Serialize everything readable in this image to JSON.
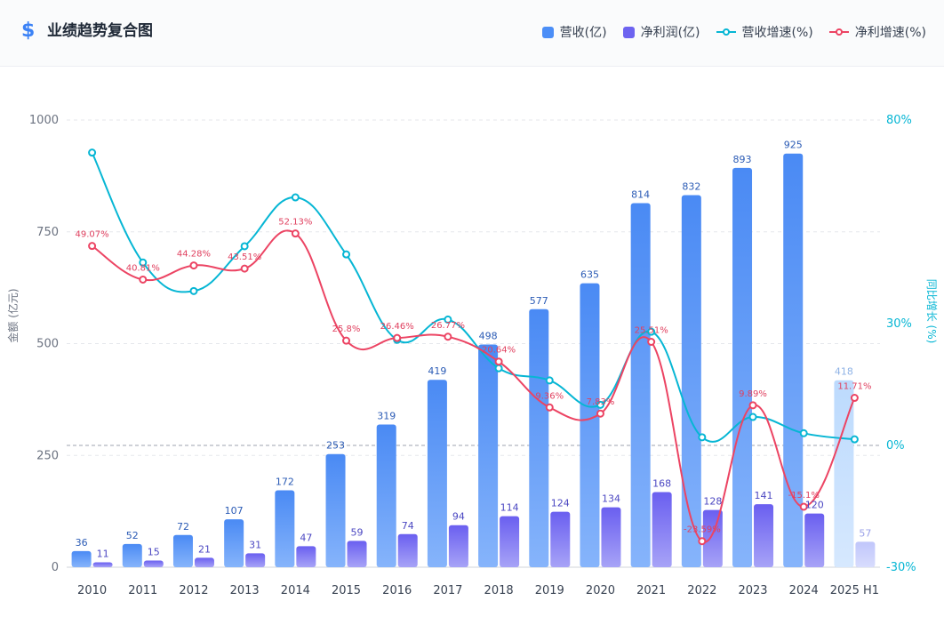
{
  "header": {
    "icon": "dollar-icon",
    "icon_glyph": "$",
    "title": "业绩趋势复合图"
  },
  "legend": [
    {
      "label": "营收(亿)",
      "color": "#4b8ef7",
      "kind": "box"
    },
    {
      "label": "净利润(亿)",
      "color": "#6d63f0",
      "kind": "box"
    },
    {
      "label": "营收增速(%)",
      "color": "#06b6d4",
      "kind": "line"
    },
    {
      "label": "净利增速(%)",
      "color": "#ec4463",
      "kind": "line"
    }
  ],
  "chart_data": {
    "type": "bar",
    "categories": [
      "2010",
      "2011",
      "2012",
      "2013",
      "2014",
      "2015",
      "2016",
      "2017",
      "2018",
      "2019",
      "2020",
      "2021",
      "2022",
      "2023",
      "2024",
      "2025 H1"
    ],
    "ylabel": "金额 (亿元)",
    "ylabel_right": "同比增长 (%)",
    "ylim": [
      0,
      1000
    ],
    "y_ticks": [
      0,
      250,
      500,
      750,
      1000
    ],
    "ylim_right": [
      -30,
      80
    ],
    "y_ticks_right": [
      "-30%",
      "0%",
      "30%",
      "80%"
    ],
    "y_ticks_right_values": [
      -30,
      0,
      30,
      80
    ],
    "grid": true,
    "legend_position": "top-right",
    "highlighted_category": "2025 H1",
    "series": [
      {
        "name": "营收(亿)",
        "type": "bar",
        "color": "#4b8ef7",
        "values": [
          36,
          52,
          72,
          107,
          172,
          253,
          319,
          419,
          498,
          577,
          635,
          814,
          832,
          893,
          925,
          418
        ]
      },
      {
        "name": "净利润(亿)",
        "type": "bar",
        "color": "#6d63f0",
        "values": [
          11,
          15,
          21,
          31,
          47,
          59,
          74,
          94,
          114,
          124,
          134,
          168,
          128,
          141,
          120,
          57
        ]
      },
      {
        "name": "营收增速(%)",
        "type": "line",
        "axis": "right",
        "color": "#06b6d4",
        "values": [
          72,
          45,
          38,
          49,
          61,
          47,
          26,
          31,
          19,
          16,
          10,
          28,
          2,
          7,
          3,
          1.5
        ]
      },
      {
        "name": "净利增速(%)",
        "type": "line",
        "axis": "right",
        "color": "#ec4463",
        "values": [
          49.07,
          40.81,
          44.28,
          43.51,
          52.13,
          25.8,
          26.46,
          26.77,
          20.64,
          9.36,
          7.83,
          25.51,
          -23.59,
          9.89,
          -15.1,
          11.71
        ],
        "labels": [
          "49.07%",
          "40.81%",
          "44.28%",
          "43.51%",
          "52.13%",
          "25.8%",
          "26.46%",
          "26.77%",
          "20.64%",
          "9.36%",
          "7.83%",
          "25.51%",
          "-23.59%",
          "9.89%",
          "-15.1%",
          "11.71%"
        ]
      }
    ]
  }
}
